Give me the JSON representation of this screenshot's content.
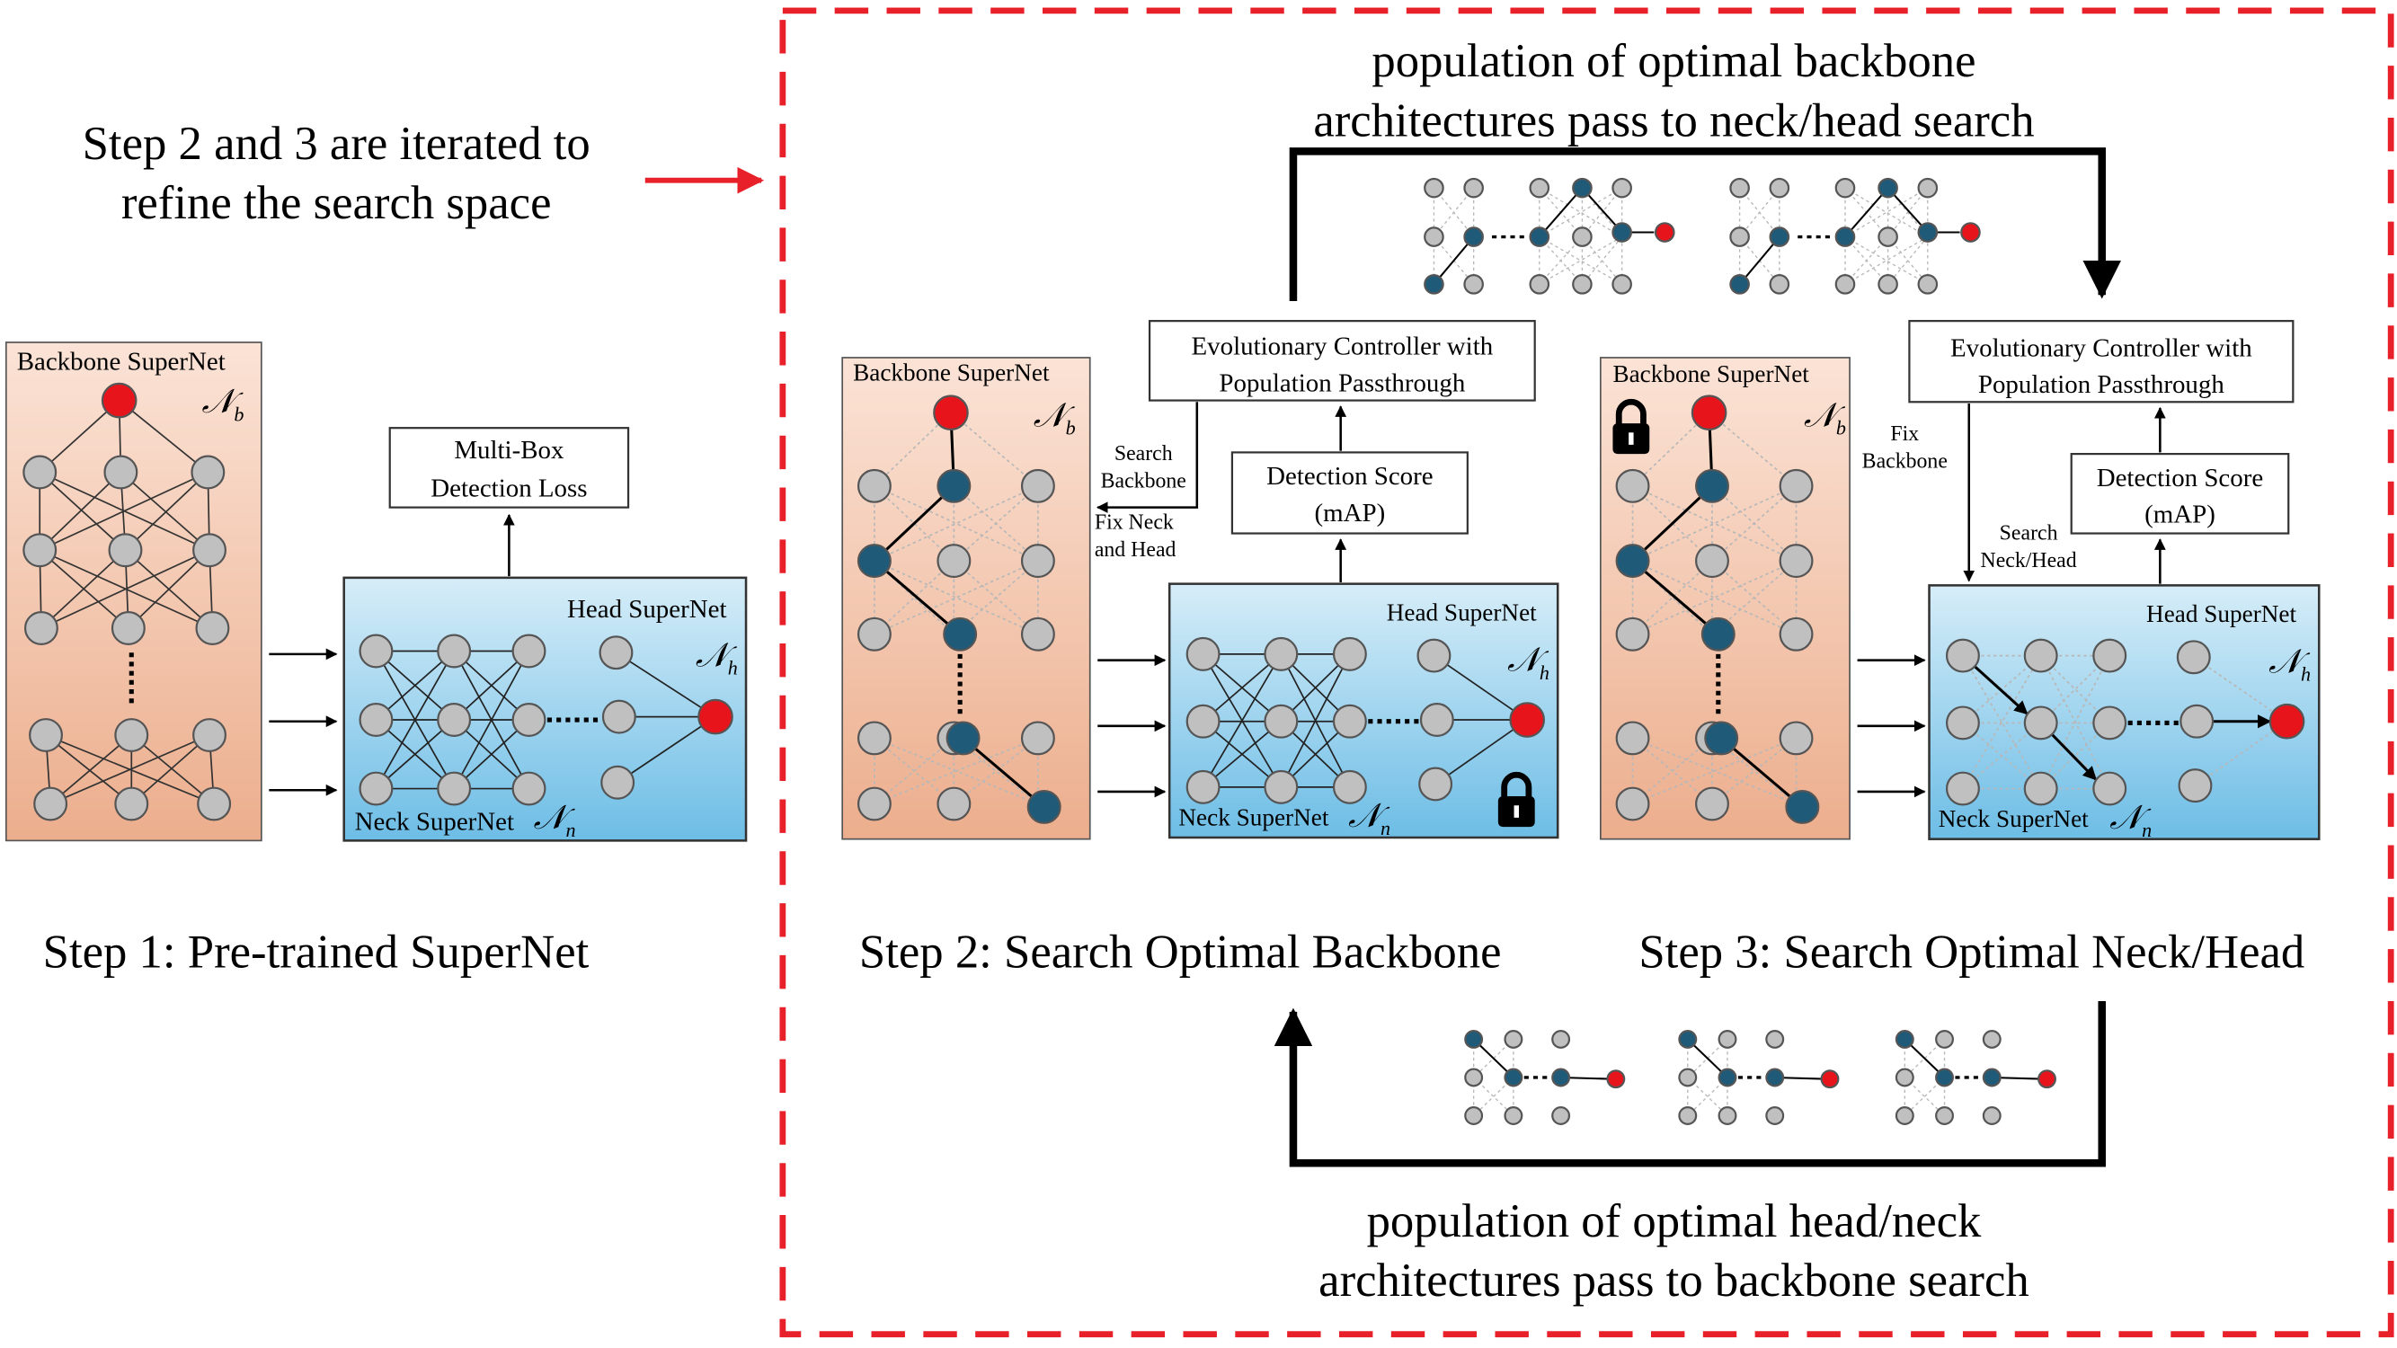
{
  "colors": {
    "dashed_border": "#e8202a",
    "arrow_red": "#e8202a",
    "node_gray": "#c0c0c0",
    "node_blue": "#1f5a78",
    "node_red": "#e8141c",
    "backbone_top": "#fbe3d6",
    "backbone_bottom": "#ecae8d",
    "neck_top": "#d6edf8",
    "neck_bottom": "#6dbde6"
  },
  "annotation": {
    "iterate_line1": "Step 2 and 3 are iterated to",
    "iterate_line2": "refine the search space"
  },
  "top_flow": {
    "line1": "population of optimal backbone",
    "line2": "architectures pass to neck/head search"
  },
  "bottom_flow": {
    "line1": "population of optimal head/neck",
    "line2": "architectures pass to backbone search"
  },
  "step1": {
    "caption": "Step 1: Pre-trained SuperNet",
    "backbone_label": "Backbone SuperNet",
    "backbone_symbol": "𝒩",
    "backbone_sub": "b",
    "loss_line1": "Multi-Box",
    "loss_line2": "Detection Loss",
    "head_label": "Head SuperNet",
    "head_symbol": "𝒩",
    "head_sub": "h",
    "neck_label": "Neck SuperNet",
    "neck_symbol": "𝒩",
    "neck_sub": "n"
  },
  "step2": {
    "caption": "Step 2: Search Optimal Backbone",
    "controller_line1": "Evolutionary Controller with",
    "controller_line2": "Population Passthrough",
    "score_line1": "Detection Score",
    "score_line2": "(mAP)",
    "search_line1": "Search",
    "search_line2": "Backbone",
    "fix_line1": "Fix Neck",
    "fix_line2": "and Head",
    "backbone_label": "Backbone SuperNet",
    "backbone_symbol": "𝒩",
    "backbone_sub": "b",
    "head_label": "Head SuperNet",
    "head_symbol": "𝒩",
    "head_sub": "h",
    "neck_label": "Neck SuperNet",
    "neck_symbol": "𝒩",
    "neck_sub": "n"
  },
  "step3": {
    "caption": "Step 3: Search Optimal Neck/Head",
    "controller_line1": "Evolutionary Controller with",
    "controller_line2": "Population Passthrough",
    "score_line1": "Detection Score",
    "score_line2": "(mAP)",
    "fix_line1": "Fix",
    "fix_line2": "Backbone",
    "search_line1": "Search",
    "search_line2": "Neck/Head",
    "backbone_label": "Backbone SuperNet",
    "backbone_symbol": "𝒩",
    "backbone_sub": "b",
    "head_label": "Head SuperNet",
    "head_symbol": "𝒩",
    "head_sub": "h",
    "neck_label": "Neck SuperNet",
    "neck_symbol": "𝒩",
    "neck_sub": "n"
  },
  "icons": {
    "lock": "lock-icon"
  }
}
